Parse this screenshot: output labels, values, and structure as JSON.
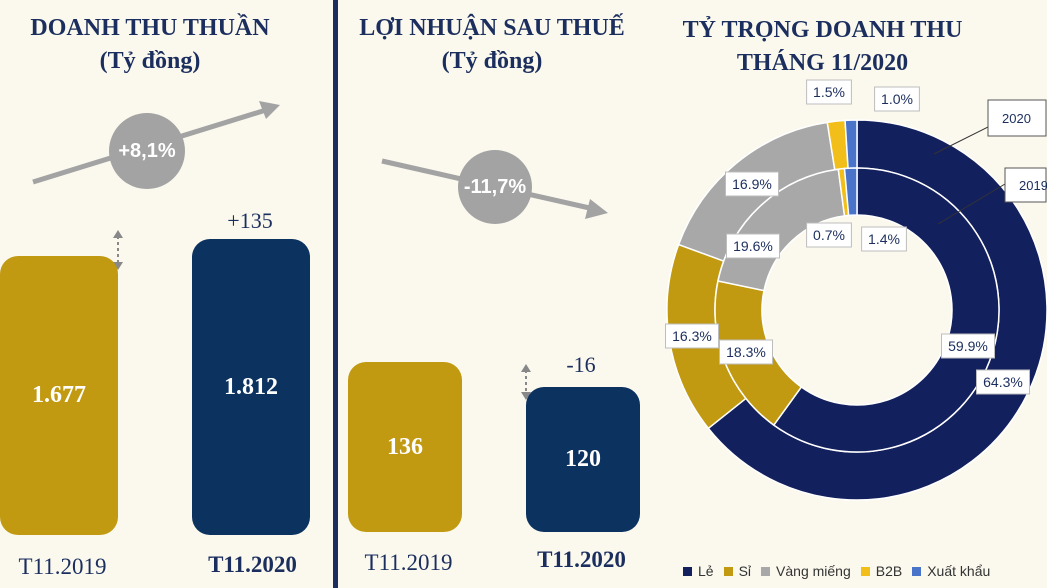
{
  "chart_data": [
    {
      "type": "bar",
      "title": "DOANH THU THUẦN",
      "subtitle": "(Tỷ đồng)",
      "categories": [
        "T11.2019",
        "T11.2020"
      ],
      "values": [
        1677,
        1812
      ],
      "value_labels": [
        "1.677",
        "1.812"
      ],
      "change_label": "+135",
      "growth_label": "+8,1%",
      "colors": [
        "#c29a12",
        "#0c3260"
      ]
    },
    {
      "type": "bar",
      "title": "LỢI NHUẬN SAU THUẾ",
      "subtitle": "(Tỷ đồng)",
      "categories": [
        "T11.2019",
        "T11.2020"
      ],
      "values": [
        136,
        120
      ],
      "value_labels": [
        "136",
        "120"
      ],
      "change_label": "-16",
      "growth_label": "-11,7%",
      "colors": [
        "#c29a12",
        "#0c3260"
      ]
    },
    {
      "type": "pie",
      "title_line1": "TỶ TRỌNG DOANH THU",
      "title_line2": "THÁNG 11/2020",
      "categories": [
        "Lẻ",
        "Sỉ",
        "Vàng miếng",
        "B2B",
        "Xuất khẩu"
      ],
      "colors": [
        "#13205e",
        "#c29a12",
        "#a8a8a8",
        "#f2bf1a",
        "#4a74c9"
      ],
      "series": [
        {
          "name": "2020",
          "values": [
            64.3,
            16.3,
            16.9,
            1.5,
            1.0
          ],
          "labels": [
            "64.3%",
            "16.3%",
            "16.9%",
            "1.5%",
            "1.0%"
          ]
        },
        {
          "name": "2019",
          "values": [
            59.9,
            18.3,
            19.6,
            0.7,
            1.4
          ],
          "labels": [
            "59.9%",
            "18.3%",
            "19.6%",
            "0.7%",
            "1.4%"
          ]
        }
      ],
      "legend_position": "bottom"
    }
  ]
}
